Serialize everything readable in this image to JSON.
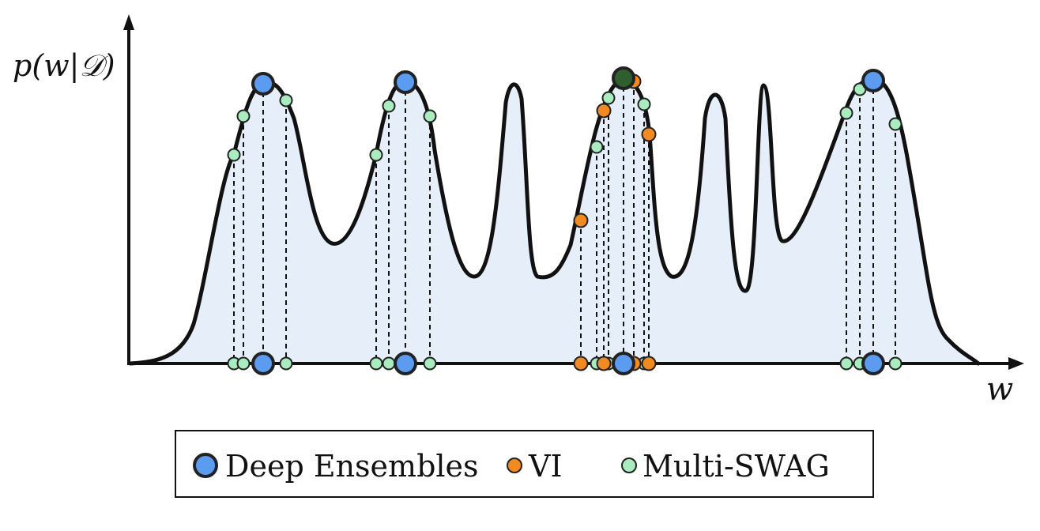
{
  "axes": {
    "y_label": "p(w|𝒟)",
    "x_label": "w"
  },
  "legend": {
    "items": [
      {
        "label": "Deep Ensembles",
        "color": "#5b9bf0",
        "marker": "large-circle"
      },
      {
        "label": "VI",
        "color": "#f28a22",
        "marker": "small-circle"
      },
      {
        "label": "Multi-SWAG",
        "color": "#a8ecbf",
        "marker": "small-circle"
      }
    ]
  },
  "colors": {
    "curve": "#111111",
    "fill": "#e6eef9",
    "deep_ensembles": "#5b9bf0",
    "vi": "#f28a22",
    "multi_swag": "#a8ecbf",
    "top_mode_dark": "#2f5e2f"
  }
}
